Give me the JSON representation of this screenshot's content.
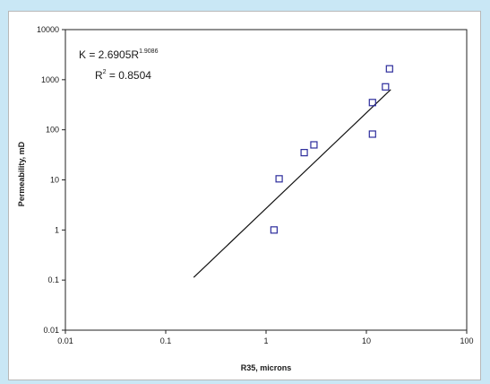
{
  "chart_data": {
    "type": "scatter",
    "x_scale": "log",
    "y_scale": "log",
    "xlim": [
      0.01,
      100
    ],
    "ylim": [
      0.01,
      10000
    ],
    "xlabel": "R35, microns",
    "ylabel": "Permeability, mD",
    "x_ticks": [
      "0.01",
      "0.1",
      "1",
      "10",
      "100"
    ],
    "y_ticks": [
      "0.01",
      "0.1",
      "1",
      "10",
      "100",
      "1000",
      "10000"
    ],
    "grid": false,
    "series": [
      {
        "points": [
          {
            "x": 1.2,
            "y": 1.0
          },
          {
            "x": 1.35,
            "y": 10.5
          },
          {
            "x": 2.4,
            "y": 35
          },
          {
            "x": 3.0,
            "y": 50
          },
          {
            "x": 11.5,
            "y": 350
          },
          {
            "x": 11.5,
            "y": 82
          },
          {
            "x": 15.5,
            "y": 720
          },
          {
            "x": 17.0,
            "y": 1650
          }
        ],
        "marker": "square",
        "color": "#2c2c9c"
      }
    ],
    "trendline": {
      "x_range": [
        0.19,
        17.5
      ],
      "coefficient": 2.6905,
      "exponent": 1.9086,
      "color": "#111111"
    },
    "annotations": {
      "equation_main": "K = 2.6905R",
      "equation_exponent": "1.9086",
      "r2_prefix": "R",
      "r2_superscript": "2",
      "r2_value": " = 0.8504"
    }
  }
}
